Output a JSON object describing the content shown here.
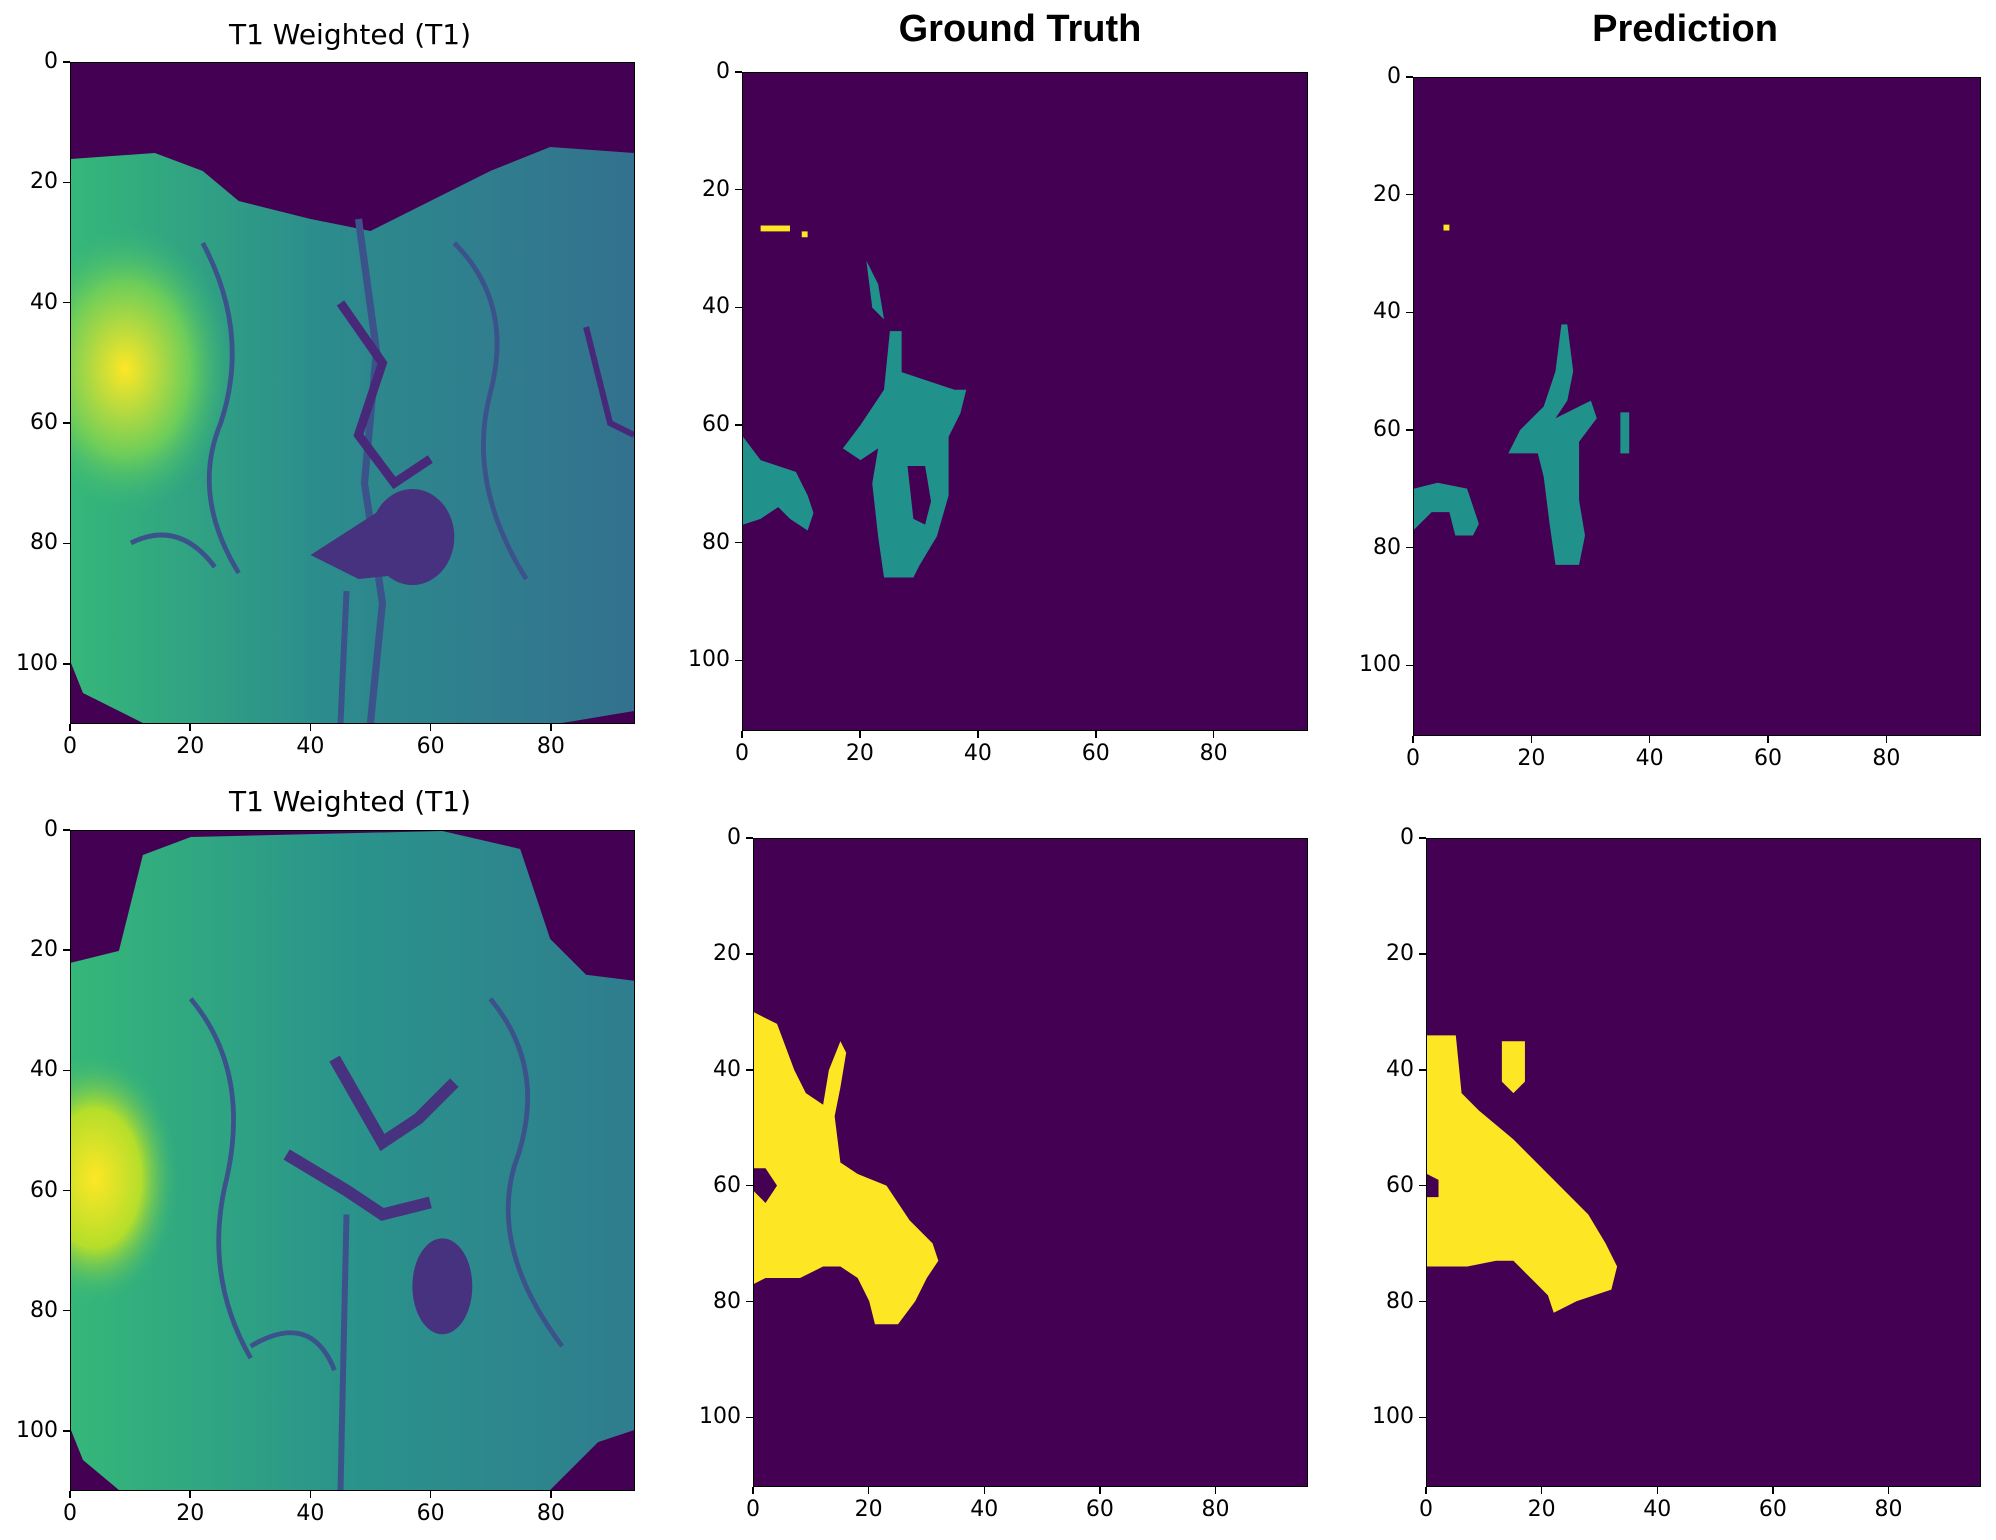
{
  "colors": {
    "background": "#440154",
    "class_teal": "#21918c",
    "class_yellow": "#fde725",
    "brain_low": "#3b528b",
    "brain_mid": "#21918c",
    "brain_high": "#fde725"
  },
  "rows": [
    {
      "panels": [
        {
          "kind": "mri",
          "title": "T1 Weighted (T1)",
          "title_style": "plain",
          "x_ticks": [
            "0",
            "20",
            "40",
            "60",
            "80"
          ],
          "y_ticks": [
            "0",
            "20",
            "40",
            "60",
            "80",
            "100"
          ],
          "xlim": [
            0,
            94
          ],
          "ylim": [
            110,
            0
          ]
        },
        {
          "kind": "mask",
          "title": "Ground Truth",
          "title_style": "bold",
          "mask_color": "teal",
          "x_ticks": [
            "0",
            "20",
            "40",
            "60",
            "80"
          ],
          "y_ticks": [
            "0",
            "20",
            "40",
            "60",
            "80",
            "100"
          ],
          "xlim": [
            0,
            96
          ],
          "ylim": [
            112,
            0
          ]
        },
        {
          "kind": "mask",
          "title": "Prediction",
          "title_style": "bold",
          "mask_color": "teal",
          "x_ticks": [
            "0",
            "20",
            "40",
            "60",
            "80"
          ],
          "y_ticks": [
            "0",
            "20",
            "40",
            "60",
            "80",
            "100"
          ],
          "xlim": [
            0,
            96
          ],
          "ylim": [
            112,
            0
          ]
        }
      ]
    },
    {
      "panels": [
        {
          "kind": "mri",
          "title": "T1 Weighted (T1)",
          "title_style": "plain",
          "x_ticks": [
            "0",
            "20",
            "40",
            "60",
            "80"
          ],
          "y_ticks": [
            "0",
            "20",
            "40",
            "60",
            "80",
            "100"
          ],
          "xlim": [
            0,
            94
          ],
          "ylim": [
            110,
            0
          ]
        },
        {
          "kind": "mask",
          "title": "",
          "title_style": "bold",
          "mask_color": "yellow",
          "x_ticks": [
            "0",
            "20",
            "40",
            "60",
            "80"
          ],
          "y_ticks": [
            "0",
            "20",
            "40",
            "60",
            "80",
            "100"
          ],
          "xlim": [
            0,
            96
          ],
          "ylim": [
            112,
            0
          ]
        },
        {
          "kind": "mask",
          "title": "",
          "title_style": "bold",
          "mask_color": "yellow",
          "x_ticks": [
            "0",
            "20",
            "40",
            "60",
            "80"
          ],
          "y_ticks": [
            "0",
            "20",
            "40",
            "60",
            "80",
            "100"
          ],
          "xlim": [
            0,
            96
          ],
          "ylim": [
            112,
            0
          ]
        }
      ]
    }
  ]
}
